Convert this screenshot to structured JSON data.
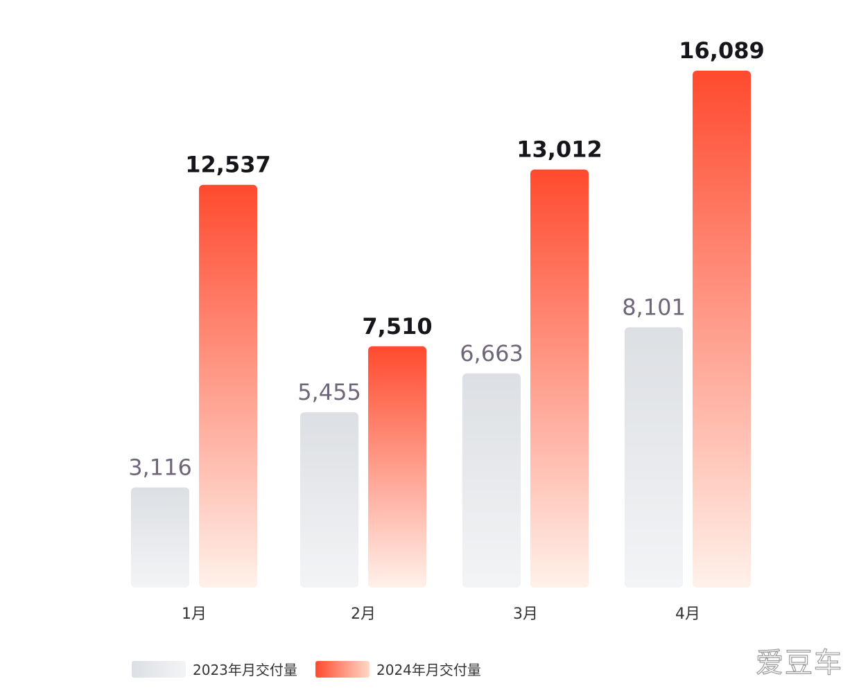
{
  "chart_data": {
    "type": "bar",
    "categories": [
      "1月",
      "2月",
      "3月",
      "4月"
    ],
    "series": [
      {
        "name": "2023年月交付量",
        "values": [
          3116,
          5455,
          6663,
          8101
        ],
        "labels": [
          "3,116",
          "5,455",
          "6,663",
          "8,101"
        ],
        "color": "#e3e5e8"
      },
      {
        "name": "2024年月交付量",
        "values": [
          12537,
          7510,
          13012,
          16089
        ],
        "labels": [
          "12,537",
          "7,510",
          "13,012",
          "16,089"
        ],
        "color": "#ff5a3c"
      }
    ],
    "ylim": [
      0,
      16089
    ],
    "grid": false,
    "legend": "bottom-left"
  },
  "watermark": "爱豆车"
}
